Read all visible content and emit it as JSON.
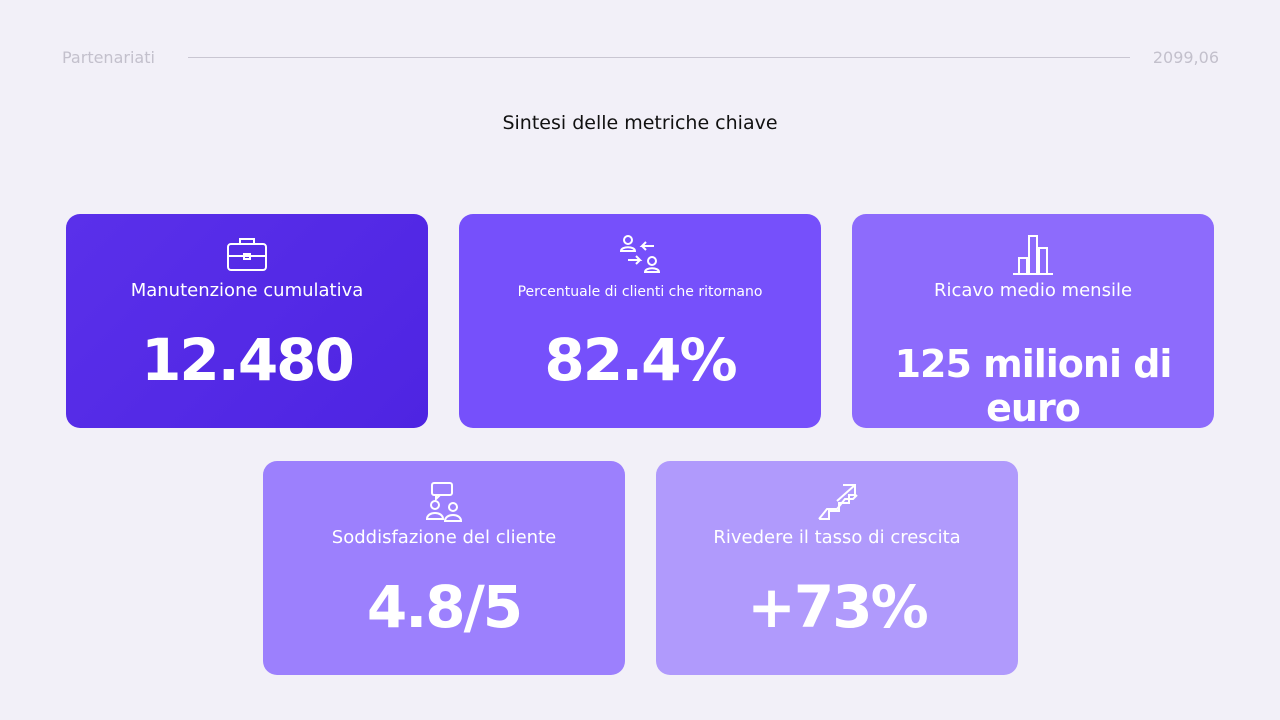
{
  "header": {
    "left": "Partenariati",
    "right": "2099,06"
  },
  "title": "Sintesi delle metriche chiave",
  "cards": [
    {
      "label": "Manutenzione cumulativa",
      "value": "12.480"
    },
    {
      "label": "Percentuale di clienti che ritornano",
      "value": "82.4%"
    },
    {
      "label": "Ricavo medio mensile",
      "value": "125 milioni di euro"
    },
    {
      "label": "Soddisfazione del cliente",
      "value": "4.8/5"
    },
    {
      "label": "Rivedere il tasso di crescita",
      "value": "+73%"
    }
  ]
}
